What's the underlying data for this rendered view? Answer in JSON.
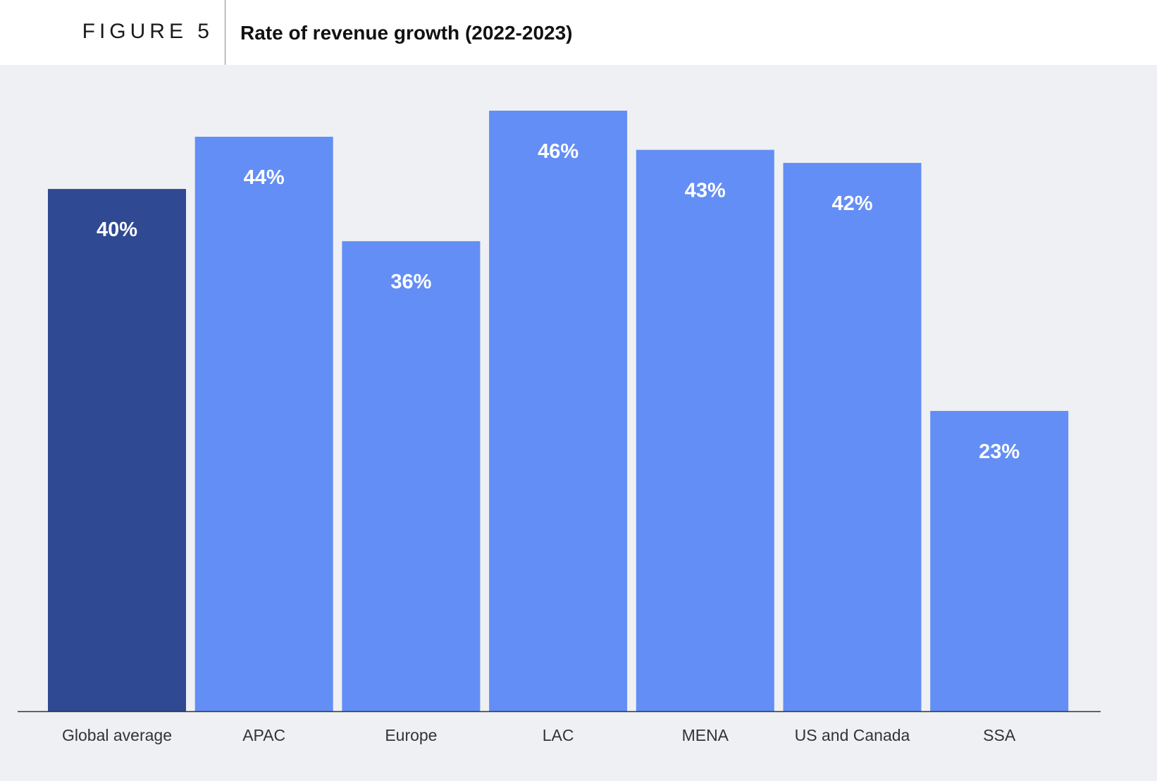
{
  "header": {
    "figure_label": "FIGURE 5",
    "title": "Rate of revenue growth (2022-2023)"
  },
  "colors": {
    "highlight_bar": "#2f4a93",
    "bar": "#638ef5",
    "label_text": "#ffffff",
    "axis": "#333333",
    "category_text": "#333333",
    "panel_background": "#eff0f4"
  },
  "chart_data": {
    "type": "bar",
    "title": "Rate of revenue growth (2022-2023)",
    "xlabel": "",
    "ylabel": "",
    "grid": false,
    "legend": "none",
    "categories": [
      "Global average",
      "APAC",
      "Europe",
      "LAC",
      "MENA",
      "US and Canada",
      "SSA"
    ],
    "values": [
      40,
      44,
      36,
      46,
      43,
      42,
      23
    ],
    "value_labels": [
      "40%",
      "44%",
      "36%",
      "46%",
      "43%",
      "42%",
      "23%"
    ],
    "highlighted_category": "Global average",
    "ylim": [
      0,
      46
    ]
  }
}
